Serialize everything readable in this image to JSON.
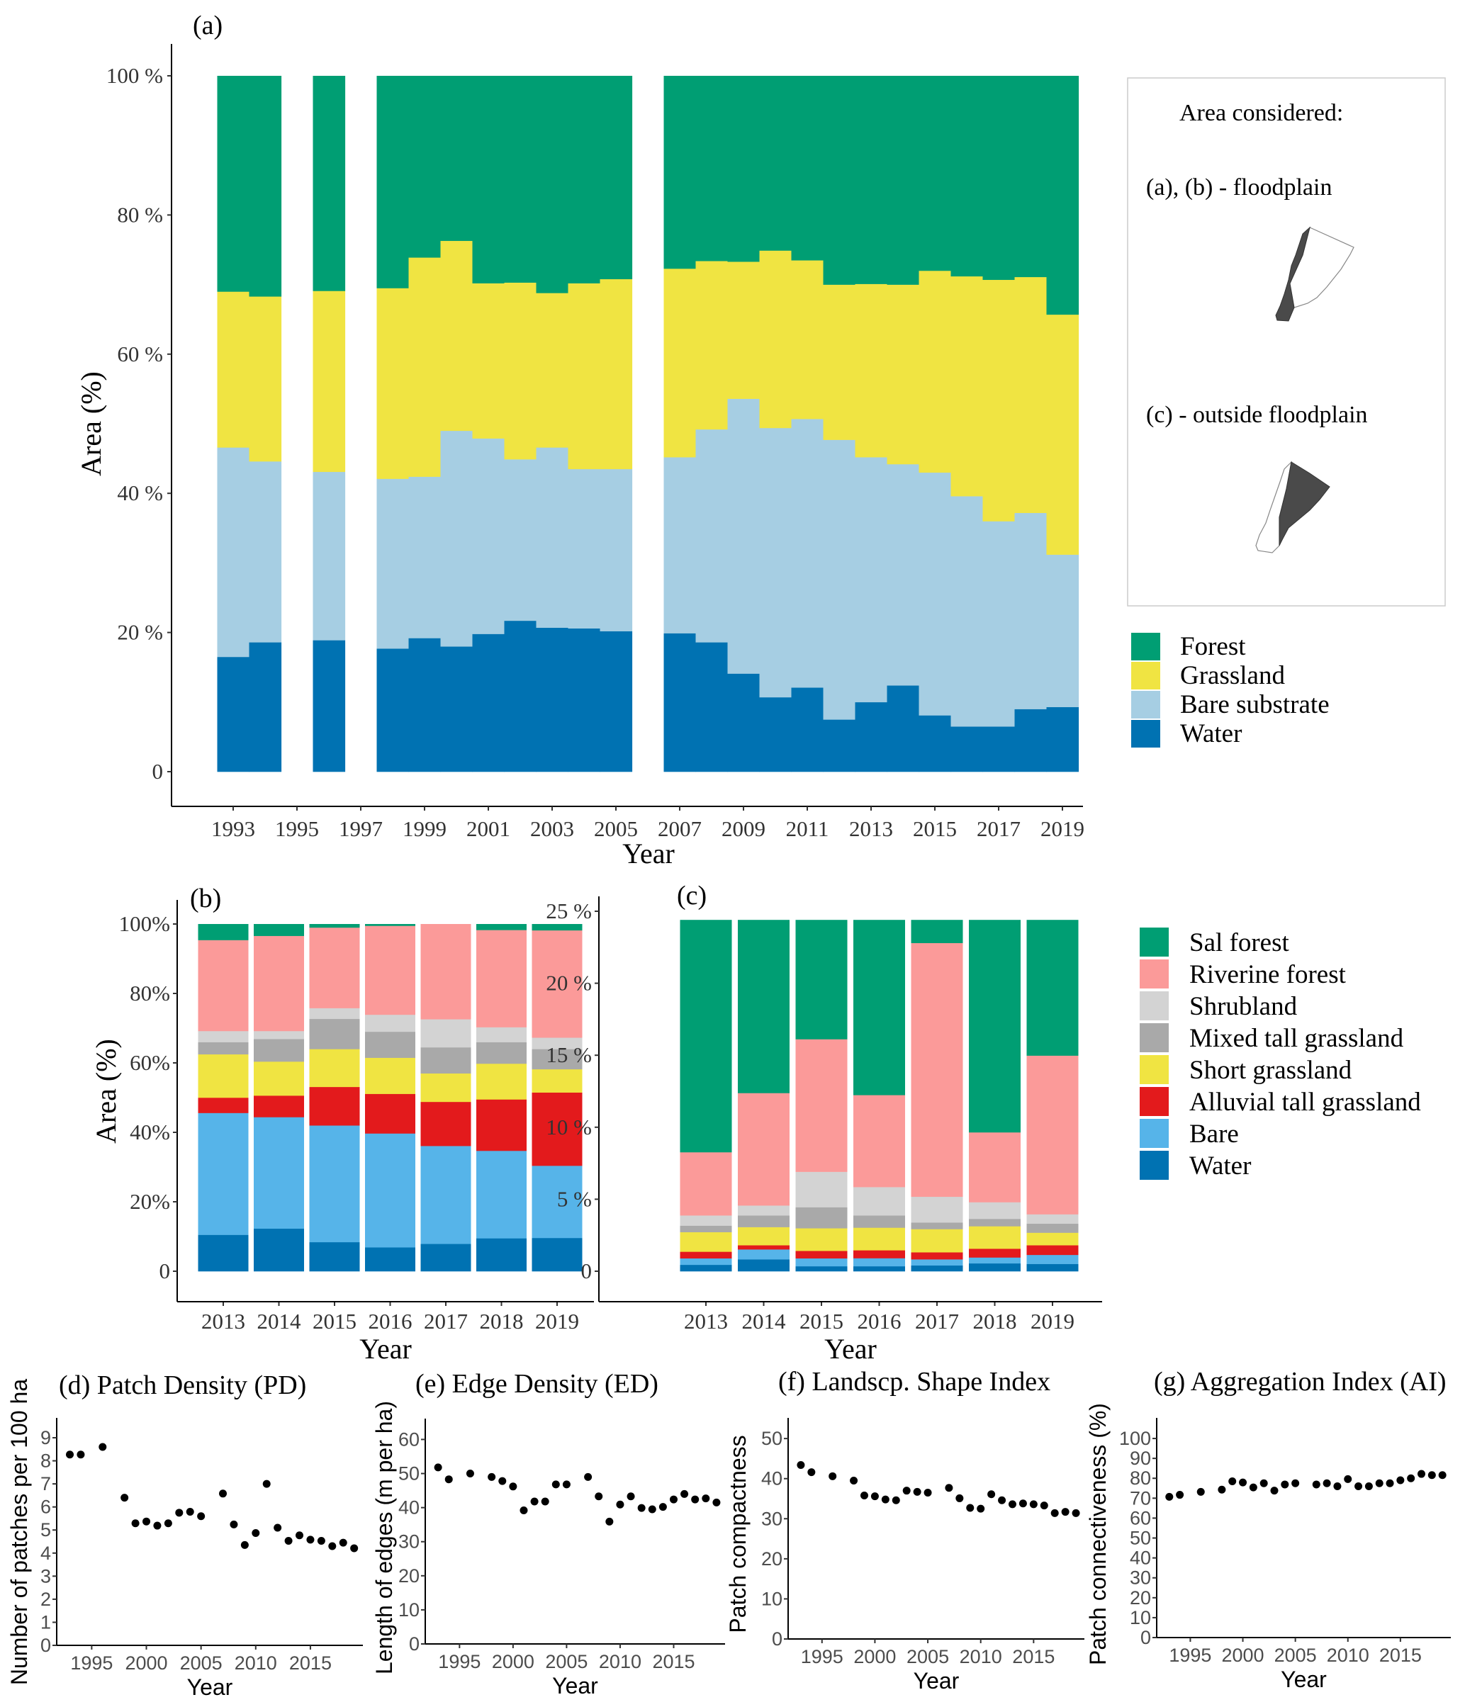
{
  "chart_data": [
    {
      "id": "a",
      "type": "bar",
      "stacked": true,
      "panel_label": "(a)",
      "xlabel": "Year",
      "ylabel": "Area (%)",
      "ylim": [
        0,
        100
      ],
      "yticks": [
        0,
        20,
        40,
        60,
        80,
        100
      ],
      "ytick_labels": [
        "0",
        "20 %",
        "40 %",
        "60 %",
        "80 %",
        "100 %"
      ],
      "xlim": [
        1991.5,
        2020
      ],
      "xticks": [
        1993,
        1995,
        1997,
        1999,
        2001,
        2003,
        2005,
        2007,
        2009,
        2011,
        2013,
        2015,
        2017,
        2019
      ],
      "xtick_labels": [
        "1993",
        "1995",
        "1997",
        "1999",
        "2001",
        "2003",
        "2005",
        "2007",
        "2009",
        "2011",
        "2013",
        "2015",
        "2017",
        "2019"
      ],
      "categories": [
        1993,
        1994,
        1996,
        1998,
        1999,
        2000,
        2001,
        2002,
        2003,
        2004,
        2005,
        2007,
        2008,
        2009,
        2010,
        2011,
        2012,
        2013,
        2014,
        2015,
        2016,
        2017,
        2018,
        2019
      ],
      "series": [
        {
          "name": "Water",
          "color": "#0072B2",
          "values": [
            16.5,
            18.6,
            18.9,
            17.7,
            19.2,
            18.0,
            19.8,
            21.7,
            20.7,
            20.6,
            20.2,
            19.9,
            18.6,
            14.1,
            10.7,
            12.1,
            7.5,
            10.0,
            12.4,
            8.1,
            6.5,
            6.5,
            9.0,
            9.3
          ]
        },
        {
          "name": "Bare substrate",
          "color": "#A6CEE3",
          "values": [
            30.1,
            26.0,
            24.2,
            24.4,
            23.2,
            31.0,
            28.1,
            23.2,
            25.9,
            22.9,
            23.3,
            25.3,
            30.6,
            39.5,
            38.7,
            38.6,
            40.2,
            35.2,
            31.8,
            34.9,
            33.1,
            29.5,
            28.2,
            21.9
          ]
        },
        {
          "name": "Grassland",
          "color": "#F0E442",
          "values": [
            22.4,
            23.7,
            26.0,
            27.4,
            31.5,
            27.3,
            22.3,
            25.4,
            22.2,
            26.7,
            27.3,
            27.1,
            24.2,
            19.7,
            25.5,
            22.8,
            22.3,
            24.9,
            25.8,
            29.0,
            31.6,
            34.7,
            33.9,
            34.5
          ]
        },
        {
          "name": "Forest",
          "color": "#009E73",
          "values": [
            31.0,
            31.7,
            30.9,
            30.5,
            26.1,
            23.7,
            29.8,
            29.7,
            31.2,
            29.8,
            29.2,
            27.7,
            26.6,
            26.7,
            25.1,
            26.5,
            30.0,
            29.9,
            30.0,
            28.0,
            28.8,
            29.3,
            28.9,
            34.3
          ]
        }
      ],
      "legend": {
        "position": "right",
        "entries": [
          "Forest",
          "Grassland",
          "Bare substrate",
          "Water"
        ]
      },
      "inset": {
        "title": "Area considered:",
        "line1": "(a), (b) - floodplain",
        "line2": "(c) - outside floodplain"
      }
    },
    {
      "id": "b",
      "type": "bar",
      "stacked": true,
      "panel_label": "(b)",
      "xlabel": "Year",
      "ylabel": "Area (%)",
      "ylim": [
        0,
        100
      ],
      "yticks": [
        0,
        20,
        40,
        60,
        80,
        100
      ],
      "ytick_labels": [
        "0",
        "20%",
        "40%",
        "60%",
        "80%",
        "100%"
      ],
      "categories": [
        "2013",
        "2014",
        "2015",
        "2016",
        "2017",
        "2018",
        "2019"
      ],
      "series": [
        {
          "name": "Water",
          "color": "#0072B2",
          "values": [
            10.5,
            12.3,
            8.4,
            6.9,
            7.9,
            9.5,
            9.6
          ]
        },
        {
          "name": "Bare",
          "color": "#56B4E9",
          "values": [
            35.1,
            32.1,
            33.6,
            32.8,
            28.2,
            25.2,
            20.8
          ]
        },
        {
          "name": "Alluvial tall grassland",
          "color": "#E31A1C",
          "values": [
            4.4,
            6.2,
            11.1,
            11.4,
            12.7,
            14.8,
            21.1
          ]
        },
        {
          "name": "Short grassland",
          "color": "#F0E442",
          "values": [
            12.5,
            9.8,
            10.9,
            10.4,
            8.2,
            10.3,
            6.7
          ]
        },
        {
          "name": "Mixed tall grassland",
          "color": "#A9A9A9",
          "values": [
            3.5,
            6.5,
            8.7,
            7.5,
            7.5,
            6.2,
            5.8
          ]
        },
        {
          "name": "Shrubland",
          "color": "#D3D3D3",
          "values": [
            3.2,
            2.3,
            3.1,
            4.9,
            8.1,
            4.3,
            3.3
          ]
        },
        {
          "name": "Riverine forest",
          "color": "#FB9A99",
          "values": [
            26.2,
            27.4,
            23.2,
            25.6,
            27.4,
            28.0,
            30.9
          ]
        },
        {
          "name": "Sal forest",
          "color": "#009E73",
          "values": [
            4.6,
            3.4,
            1.0,
            0.5,
            0.0,
            1.7,
            1.8
          ]
        }
      ]
    },
    {
      "id": "c",
      "type": "bar",
      "stacked": true,
      "panel_label": "(c)",
      "xlabel": "Year",
      "ylabel": "",
      "ylim": [
        0,
        25
      ],
      "yticks": [
        0,
        5,
        10,
        15,
        20,
        25
      ],
      "ytick_labels": [
        "0",
        "5 %",
        "10 %",
        "15 %",
        "20 %",
        "25 %"
      ],
      "categories": [
        "2013",
        "2014",
        "2015",
        "2016",
        "2017",
        "2018",
        "2019"
      ],
      "series": [
        {
          "name": "Water",
          "color": "#0072B2",
          "values": [
            0.45,
            0.83,
            0.35,
            0.35,
            0.41,
            0.55,
            0.51
          ]
        },
        {
          "name": "Bare",
          "color": "#56B4E9",
          "values": [
            0.45,
            0.69,
            0.55,
            0.56,
            0.42,
            0.41,
            0.63
          ]
        },
        {
          "name": "Alluvial tall grassland",
          "color": "#E31A1C",
          "values": [
            0.46,
            0.29,
            0.52,
            0.55,
            0.49,
            0.61,
            0.67
          ]
        },
        {
          "name": "Short grassland",
          "color": "#F0E442",
          "values": [
            1.36,
            1.26,
            1.57,
            1.57,
            1.61,
            1.56,
            0.87
          ]
        },
        {
          "name": "Mixed tall grassland",
          "color": "#A9A9A9",
          "values": [
            0.45,
            0.81,
            1.46,
            0.85,
            0.46,
            0.51,
            0.63
          ]
        },
        {
          "name": "Shrubland",
          "color": "#D3D3D3",
          "values": [
            0.71,
            0.69,
            2.46,
            1.97,
            1.79,
            1.16,
            0.65
          ]
        },
        {
          "name": "Riverine forest",
          "color": "#FB9A99",
          "values": [
            4.39,
            7.81,
            9.21,
            6.39,
            17.62,
            4.85,
            11.02
          ]
        },
        {
          "name": "Sal forest",
          "color": "#009E73",
          "values": [
            16.13,
            12.02,
            8.28,
            12.16,
            1.6,
            14.75,
            9.42
          ]
        }
      ],
      "legend": {
        "position": "right",
        "entries": [
          "Sal forest",
          "Riverine forest",
          "Shrubland",
          "Mixed tall grassland",
          "Short grassland",
          "Alluvial tall grassland",
          "Bare",
          "Water"
        ]
      }
    },
    {
      "id": "d",
      "type": "scatter",
      "title": "(d) Patch Density (PD)",
      "xlabel": "Year",
      "ylabel": "Number of patches per 100 ha",
      "ylim": [
        0,
        9.4
      ],
      "yticks": [
        0,
        1,
        2,
        3,
        4,
        5,
        6,
        7,
        8,
        9
      ],
      "xlim": [
        1991.8,
        2019.8
      ],
      "xticks": [
        1995,
        2000,
        2005,
        2010,
        2015
      ],
      "x": [
        1993,
        1994,
        1996,
        1998,
        1999,
        2000,
        2001,
        2002,
        2003,
        2004,
        2005,
        2007,
        2008,
        2009,
        2010,
        2011,
        2012,
        2013,
        2014,
        2015,
        2016,
        2017,
        2018,
        2019
      ],
      "y": [
        8.27,
        8.27,
        8.6,
        6.4,
        5.29,
        5.37,
        5.19,
        5.29,
        5.75,
        5.79,
        5.6,
        6.58,
        5.24,
        4.35,
        4.87,
        7.0,
        5.1,
        4.53,
        4.77,
        4.58,
        4.53,
        4.3,
        4.45,
        4.21
      ]
    },
    {
      "id": "e",
      "type": "scatter",
      "title": "(e) Edge Density (ED)",
      "xlabel": "Year",
      "ylabel": "Length of edges (m per ha)",
      "ylim": [
        0,
        63
      ],
      "yticks": [
        0,
        10,
        20,
        30,
        40,
        50,
        60
      ],
      "xlim": [
        1991.8,
        2019.8
      ],
      "xticks": [
        1995,
        2000,
        2005,
        2010,
        2015
      ],
      "x": [
        1993,
        1994,
        1996,
        1998,
        1999,
        2000,
        2001,
        2002,
        2003,
        2004,
        2005,
        2007,
        2008,
        2009,
        2010,
        2011,
        2012,
        2013,
        2014,
        2015,
        2016,
        2017,
        2018,
        2019
      ],
      "y": [
        51.8,
        48.3,
        50.0,
        49.0,
        47.8,
        46.2,
        39.2,
        41.8,
        41.8,
        46.8,
        46.8,
        49.0,
        43.3,
        35.9,
        40.9,
        43.3,
        39.9,
        39.5,
        40.2,
        42.4,
        44.0,
        42.4,
        42.7,
        41.5
      ]
    },
    {
      "id": "f",
      "type": "scatter",
      "title": "(f) Landscp. Shape Index",
      "xlabel": "Year",
      "ylabel": "Patch compactness",
      "ylim": [
        0,
        52.5
      ],
      "yticks": [
        0,
        10,
        20,
        30,
        40,
        50
      ],
      "xlim": [
        1991.8,
        2019.8
      ],
      "xticks": [
        1995,
        2000,
        2005,
        2010,
        2015
      ],
      "x": [
        1993,
        1994,
        1996,
        1998,
        1999,
        2000,
        2001,
        2002,
        2003,
        2004,
        2005,
        2007,
        2008,
        2009,
        2010,
        2011,
        2012,
        2013,
        2014,
        2015,
        2016,
        2017,
        2018,
        2019
      ],
      "y": [
        43.4,
        41.6,
        40.6,
        39.5,
        35.8,
        35.6,
        34.8,
        34.6,
        37.0,
        36.7,
        36.5,
        37.7,
        35.1,
        32.7,
        32.5,
        36.1,
        34.6,
        33.6,
        33.8,
        33.6,
        33.3,
        31.4,
        31.7,
        31.4
      ]
    },
    {
      "id": "g",
      "type": "scatter",
      "title": "(g) Aggregation Index (AI)",
      "xlabel": "Year",
      "ylabel": "Patch connectiveness (%)",
      "ylim": [
        0,
        105
      ],
      "yticks": [
        0,
        10,
        20,
        30,
        40,
        50,
        60,
        70,
        80,
        90,
        100
      ],
      "xlim": [
        1991.8,
        2019.8
      ],
      "xticks": [
        1995,
        2000,
        2005,
        2010,
        2015
      ],
      "x": [
        1993,
        1994,
        1996,
        1998,
        1999,
        2000,
        2001,
        2002,
        2003,
        2004,
        2005,
        2007,
        2008,
        2009,
        2010,
        2011,
        2012,
        2013,
        2014,
        2015,
        2016,
        2017,
        2018,
        2019
      ],
      "y": [
        70.7,
        71.7,
        73.2,
        74.3,
        78.5,
        77.9,
        75.4,
        77.5,
        73.8,
        76.9,
        77.5,
        76.9,
        77.5,
        76.0,
        79.6,
        76.0,
        76.0,
        77.5,
        77.5,
        79.0,
        80.0,
        82.2,
        81.6,
        81.6
      ]
    }
  ]
}
